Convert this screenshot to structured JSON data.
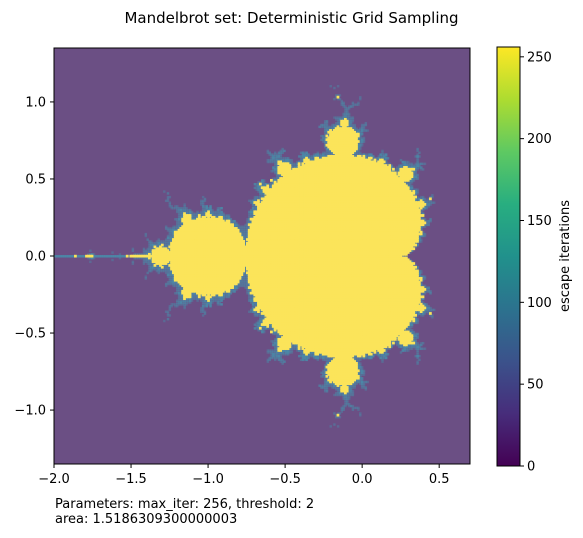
{
  "figure": {
    "title": "Mandelbrot set: Deterministic Grid Sampling",
    "footnote_line1": "Parameters: max_iter: 256, threshold: 2",
    "footnote_line2": "area: 1.5186309300000003"
  },
  "chart_data": {
    "type": "heatmap",
    "title": "Mandelbrot set: Deterministic Grid Sampling",
    "xlabel": "",
    "ylabel": "",
    "xlim": [
      -2.0,
      0.7
    ],
    "ylim": [
      -1.35,
      1.35
    ],
    "x_ticks": [
      -2.0,
      -1.5,
      -1.0,
      -0.5,
      0.0,
      0.5
    ],
    "x_tick_labels": [
      "−2.0",
      "−1.5",
      "−1.0",
      "−0.5",
      "0.0",
      "0.5"
    ],
    "y_ticks": [
      -1.0,
      -0.5,
      0.0,
      0.5,
      1.0
    ],
    "y_tick_labels": [
      "−1.0",
      "−0.5",
      "0.0",
      "0.5",
      "1.0"
    ],
    "colorbar": {
      "label": "escape iterations",
      "range": [
        0,
        256
      ],
      "ticks": [
        0,
        50,
        100,
        150,
        200,
        250
      ],
      "tick_labels": [
        "0",
        "50",
        "100",
        "150",
        "200",
        "250"
      ],
      "colormap": "viridis"
    },
    "max_iter": 256,
    "threshold": 2,
    "area": 1.5186309300000003,
    "colors": {
      "outside": "#6b4f84",
      "inside": "#fbe45a",
      "edge": "#4a8aa8"
    }
  }
}
